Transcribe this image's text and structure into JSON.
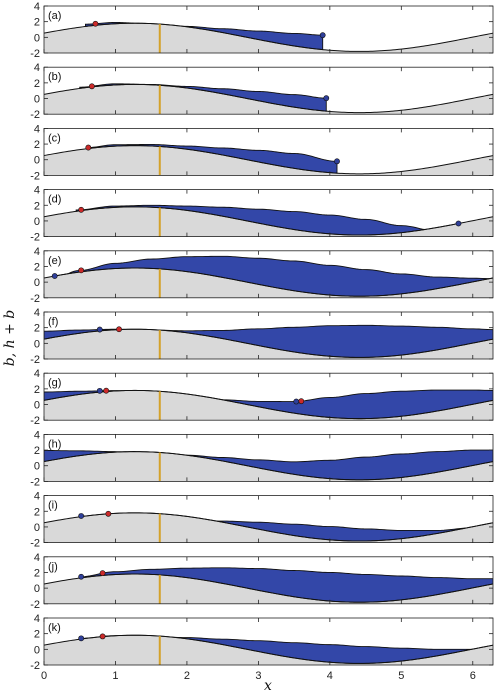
{
  "chart_data": {
    "type": "area",
    "xlabel": "x",
    "ylabel": "b, h + b",
    "xlim": [
      0,
      6.283
    ],
    "ylim": [
      -2,
      4
    ],
    "x_ticks": [
      "0",
      "1",
      "2",
      "3",
      "4",
      "5",
      "6"
    ],
    "y_ticks": [
      "-2",
      "0",
      "2",
      "4"
    ],
    "grid": false,
    "bottom_profile": {
      "formula": "b(x) = 1.8 sin(x + 0.3)",
      "amplitude": 1.8,
      "phase": 0.3
    },
    "marker_line_x": 1.62,
    "colors": {
      "ground": "#d9d9d9",
      "water": "#3347a8",
      "marker_line": "#d4a22a",
      "red_point": "#cc2a2a",
      "blue_point": "#2f3f9a",
      "outline": "#111111"
    },
    "panels": [
      {
        "label": "(a)",
        "surface_x": [
          0.58,
          1.0,
          1.5,
          2.0,
          2.5,
          3.0,
          3.5,
          3.9
        ],
        "surface_y": [
          1.68,
          1.9,
          1.72,
          1.4,
          1.1,
          0.8,
          0.5,
          0.28
        ],
        "red_x": 0.72,
        "blue_x": 3.9
      },
      {
        "label": "(b)",
        "surface_x": [
          0.5,
          1.0,
          1.5,
          2.0,
          2.5,
          3.0,
          3.5,
          3.95
        ],
        "surface_y": [
          1.45,
          1.88,
          1.8,
          1.55,
          1.25,
          0.9,
          0.5,
          0.05
        ],
        "red_x": 0.67,
        "blue_x": 3.95
      },
      {
        "label": "(c)",
        "surface_x": [
          0.6,
          1.0,
          1.5,
          2.0,
          2.5,
          3.0,
          3.5,
          4.1
        ],
        "surface_y": [
          1.55,
          1.92,
          1.95,
          1.75,
          1.5,
          1.2,
          0.8,
          -0.2
        ],
        "red_x": 0.62,
        "blue_x": 4.1
      },
      {
        "label": "(d)",
        "surface_x": [
          0.45,
          1.0,
          1.5,
          2.0,
          2.5,
          3.0,
          3.5,
          4.0,
          4.5,
          5.0,
          5.5,
          5.8
        ],
        "surface_y": [
          1.4,
          1.9,
          2.0,
          1.9,
          1.75,
          1.5,
          1.2,
          0.75,
          0.2,
          -0.6,
          -1.3,
          -1.6
        ],
        "red_x": 0.52,
        "blue_x": 5.8
      },
      {
        "label": "(e)",
        "surface_x": [
          0.15,
          0.5,
          1.0,
          1.5,
          2.0,
          2.5,
          3.0,
          3.5,
          4.0,
          4.5,
          5.0,
          5.5,
          6.0,
          6.283
        ],
        "surface_y": [
          0.55,
          1.5,
          2.4,
          2.95,
          3.25,
          3.3,
          3.05,
          2.7,
          2.15,
          1.6,
          1.05,
          0.65,
          0.5,
          0.45
        ],
        "red_x": 0.52,
        "blue_x": 0.15
      },
      {
        "label": "(f)",
        "surface_x": [
          0.0,
          0.5,
          1.0,
          1.5,
          2.0,
          2.5,
          3.0,
          3.5,
          4.0,
          4.5,
          5.0,
          5.5,
          6.0,
          6.283
        ],
        "surface_y": [
          1.55,
          1.7,
          1.8,
          1.7,
          1.6,
          1.65,
          1.85,
          2.05,
          2.25,
          2.3,
          2.2,
          2.05,
          1.85,
          1.75
        ],
        "red_x": 1.05,
        "blue_x": 0.78
      },
      {
        "label": "(g)",
        "surface_x": [
          0.0,
          0.5,
          1.0,
          1.5,
          2.0,
          2.5,
          3.0,
          3.5,
          4.0,
          4.5,
          5.0,
          5.5,
          6.0,
          6.283
        ],
        "surface_y": [
          1.6,
          1.7,
          1.78,
          1.5,
          1.1,
          0.6,
          0.4,
          0.38,
          0.9,
          1.4,
          1.7,
          1.85,
          1.85,
          1.8
        ],
        "red_x": 0.87,
        "blue_x": 0.78,
        "red2_x": 3.6,
        "blue2_x": 3.53
      },
      {
        "label": "(h)",
        "surface_x": [
          0.0,
          0.5,
          1.0,
          1.5,
          2.0,
          2.5,
          3.0,
          3.5,
          4.0,
          4.5,
          5.0,
          5.5,
          6.0,
          6.283
        ],
        "surface_y": [
          1.95,
          1.9,
          1.8,
          1.6,
          1.35,
          1.05,
          0.75,
          0.5,
          0.7,
          1.1,
          1.5,
          1.8,
          2.0,
          2.0
        ]
      },
      {
        "label": "(i)",
        "surface_x": [
          0.5,
          1.0,
          1.5,
          2.0,
          2.5,
          3.0,
          3.5,
          4.0,
          4.5,
          5.0,
          5.5,
          6.0,
          6.283
        ],
        "surface_y": [
          1.4,
          1.5,
          1.2,
          0.9,
          0.75,
          0.6,
          0.35,
          0.05,
          -0.25,
          -0.45,
          -0.45,
          -0.1,
          0.3
        ],
        "red_x": 0.9,
        "blue_x": 0.52
      },
      {
        "label": "(j)",
        "surface_x": [
          0.5,
          1.0,
          1.5,
          2.0,
          2.5,
          3.0,
          3.5,
          4.0,
          4.5,
          5.0,
          5.5,
          6.0,
          6.283
        ],
        "surface_y": [
          1.45,
          2.1,
          2.4,
          2.55,
          2.6,
          2.5,
          2.25,
          2.0,
          1.75,
          1.55,
          1.35,
          1.2,
          1.2
        ],
        "red_x": 0.82,
        "blue_x": 0.52
      },
      {
        "label": "(k)",
        "surface_x": [
          0.5,
          1.0,
          1.5,
          2.0,
          2.5,
          3.0,
          3.5,
          4.0,
          4.5,
          5.0,
          5.5,
          6.0,
          6.283
        ],
        "surface_y": [
          1.4,
          1.75,
          1.65,
          1.5,
          1.3,
          1.1,
          0.85,
          0.6,
          0.35,
          0.15,
          0.0,
          0.0,
          0.1
        ],
        "red_x": 0.82,
        "blue_x": 0.52
      }
    ]
  }
}
